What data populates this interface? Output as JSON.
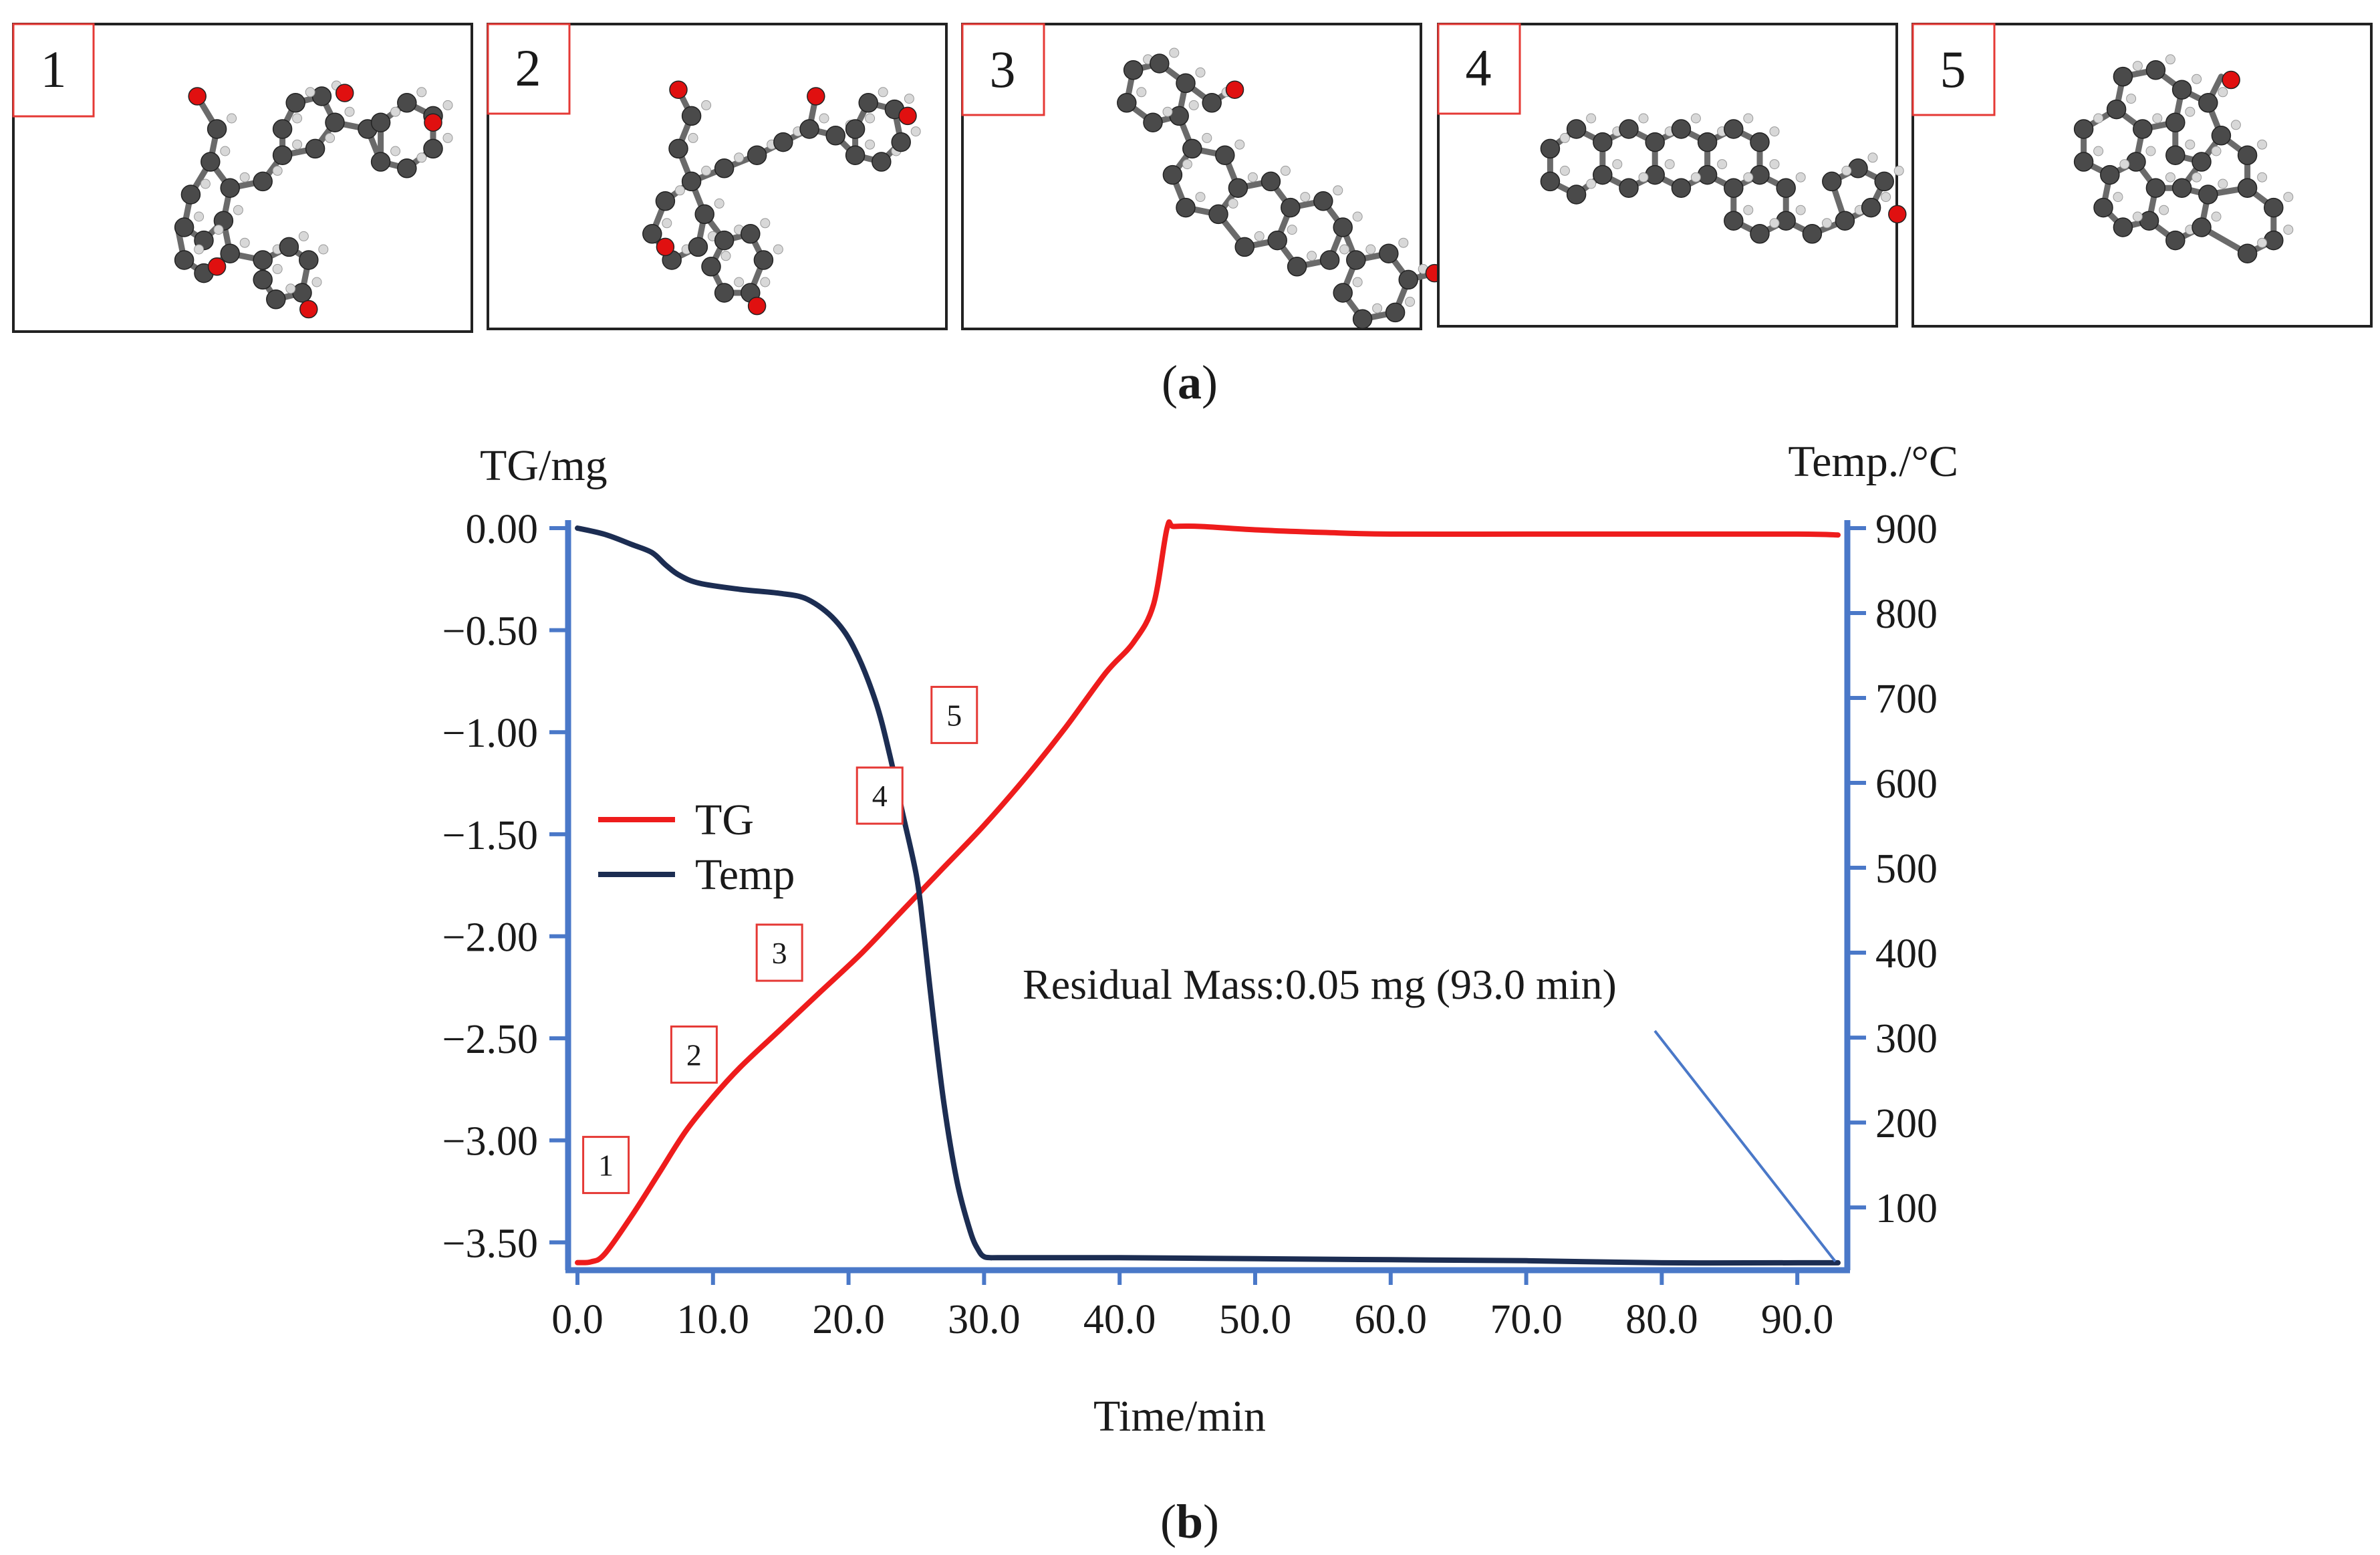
{
  "panel_a": {
    "caption_open": "(",
    "caption_letter": "a",
    "caption_close": ")",
    "molecules": [
      {
        "label": "1"
      },
      {
        "label": "2"
      },
      {
        "label": "3"
      },
      {
        "label": "4"
      },
      {
        "label": "5"
      }
    ]
  },
  "panel_b": {
    "caption_open": "(",
    "caption_letter": "b",
    "caption_close": ")"
  },
  "colors": {
    "tg": "#ee1c1c",
    "temp": "#1c2d52",
    "axis": "#4a78c8",
    "label_box": "#e53935",
    "annotation_line": "#4a78c8",
    "atom_c": "#4a4a4a",
    "atom_o": "#e01010",
    "atom_h": "#d8d8d8"
  },
  "chart_data": {
    "type": "line",
    "xlabel": "Time/min",
    "ylabel_left": "TG/mg",
    "ylabel_right": "Temp./°C",
    "xlim": [
      0,
      93
    ],
    "ylim_left": [
      -3.62,
      0
    ],
    "ylim_right": [
      30,
      900
    ],
    "x_ticks": [
      0,
      10,
      20,
      30,
      40,
      50,
      60,
      70,
      80,
      90
    ],
    "x_tick_labels": [
      "0.0",
      "10.0",
      "20.0",
      "30.0",
      "40.0",
      "50.0",
      "60.0",
      "70.0",
      "80.0",
      "90.0"
    ],
    "y_left_ticks": [
      0,
      -0.5,
      -1.0,
      -1.5,
      -2.0,
      -2.5,
      -3.0,
      -3.5
    ],
    "y_left_tick_labels": [
      "0.00",
      "−0.50",
      "−1.00",
      "−1.50",
      "−2.00",
      "−2.50",
      "−3.00",
      "−3.50"
    ],
    "y_right_ticks": [
      100,
      200,
      300,
      400,
      500,
      600,
      700,
      800,
      900
    ],
    "y_right_tick_labels": [
      "100",
      "200",
      "300",
      "400",
      "500",
      "600",
      "700",
      "800",
      "900"
    ],
    "legend": [
      {
        "name": "TG",
        "color": "#ee1c1c"
      },
      {
        "name": "Temp",
        "color": "#1c2d52"
      }
    ],
    "legend_position": "middle-left",
    "series": [
      {
        "name": "TG",
        "axis": "right",
        "x": [
          0,
          1,
          2,
          4,
          6,
          8,
          10,
          12,
          15,
          18,
          21,
          24,
          27,
          30,
          33,
          36,
          39,
          41,
          42.5,
          43.5,
          44,
          46,
          50,
          55,
          60,
          70,
          80,
          90,
          93
        ],
        "y": [
          35,
          36,
          45,
          90,
          140,
          190,
          230,
          265,
          310,
          355,
          400,
          450,
          500,
          550,
          605,
          665,
          730,
          765,
          810,
          900,
          902,
          902,
          898,
          895,
          893,
          893,
          893,
          893,
          892
        ]
      },
      {
        "name": "Temp",
        "axis": "left",
        "x": [
          0,
          2,
          4,
          5.5,
          6.5,
          7.5,
          9,
          12,
          15,
          17,
          19,
          20.5,
          22,
          23,
          24,
          25,
          25.5,
          26,
          27,
          28,
          29,
          29.6,
          30,
          30.5,
          31,
          35,
          40,
          50,
          60,
          70,
          80,
          90,
          93
        ],
        "y": [
          0,
          -0.03,
          -0.08,
          -0.12,
          -0.18,
          -0.23,
          -0.27,
          -0.3,
          -0.32,
          -0.35,
          -0.45,
          -0.6,
          -0.85,
          -1.1,
          -1.4,
          -1.7,
          -1.95,
          -2.25,
          -2.8,
          -3.2,
          -3.45,
          -3.54,
          -3.57,
          -3.575,
          -3.575,
          -3.575,
          -3.575,
          -3.58,
          -3.585,
          -3.59,
          -3.6,
          -3.6,
          -3.6
        ]
      }
    ],
    "markers": [
      {
        "label": "1",
        "x": 2.1,
        "y_temp": 150
      },
      {
        "label": "2",
        "x": 8.6,
        "y_temp": 280
      },
      {
        "label": "3",
        "x": 14.9,
        "y_temp": 400
      },
      {
        "label": "4",
        "x": 22.3,
        "y_temp": 585
      },
      {
        "label": "5",
        "x": 27.8,
        "y_temp": 680
      }
    ],
    "annotations": [
      {
        "text": "Residual Mass:0.05 mg (93.0 min)",
        "x": 93,
        "y": -3.6
      }
    ]
  }
}
